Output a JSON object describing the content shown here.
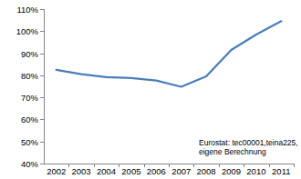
{
  "chart_data": {
    "type": "line",
    "categories": [
      "2002",
      "2003",
      "2004",
      "2005",
      "2006",
      "2007",
      "2008",
      "2009",
      "2010",
      "2011"
    ],
    "values": [
      82.5,
      80.5,
      79.2,
      78.8,
      77.6,
      74.8,
      79.5,
      91.5,
      98.5,
      104.5
    ],
    "color": "#4a7ebb",
    "ylim": [
      40,
      110
    ],
    "yticks": [
      {
        "value": 40,
        "label": "40%"
      },
      {
        "value": 50,
        "label": "50%"
      },
      {
        "value": 60,
        "label": "60%"
      },
      {
        "value": 70,
        "label": "70%"
      },
      {
        "value": 80,
        "label": "80%"
      },
      {
        "value": 90,
        "label": "90%"
      },
      {
        "value": 100,
        "label": "100%"
      },
      {
        "value": 110,
        "label": "110%"
      }
    ],
    "grid": false,
    "annotations": [
      "Eurostat: tec00001,teina225,",
      "eigene Berechnung"
    ]
  }
}
